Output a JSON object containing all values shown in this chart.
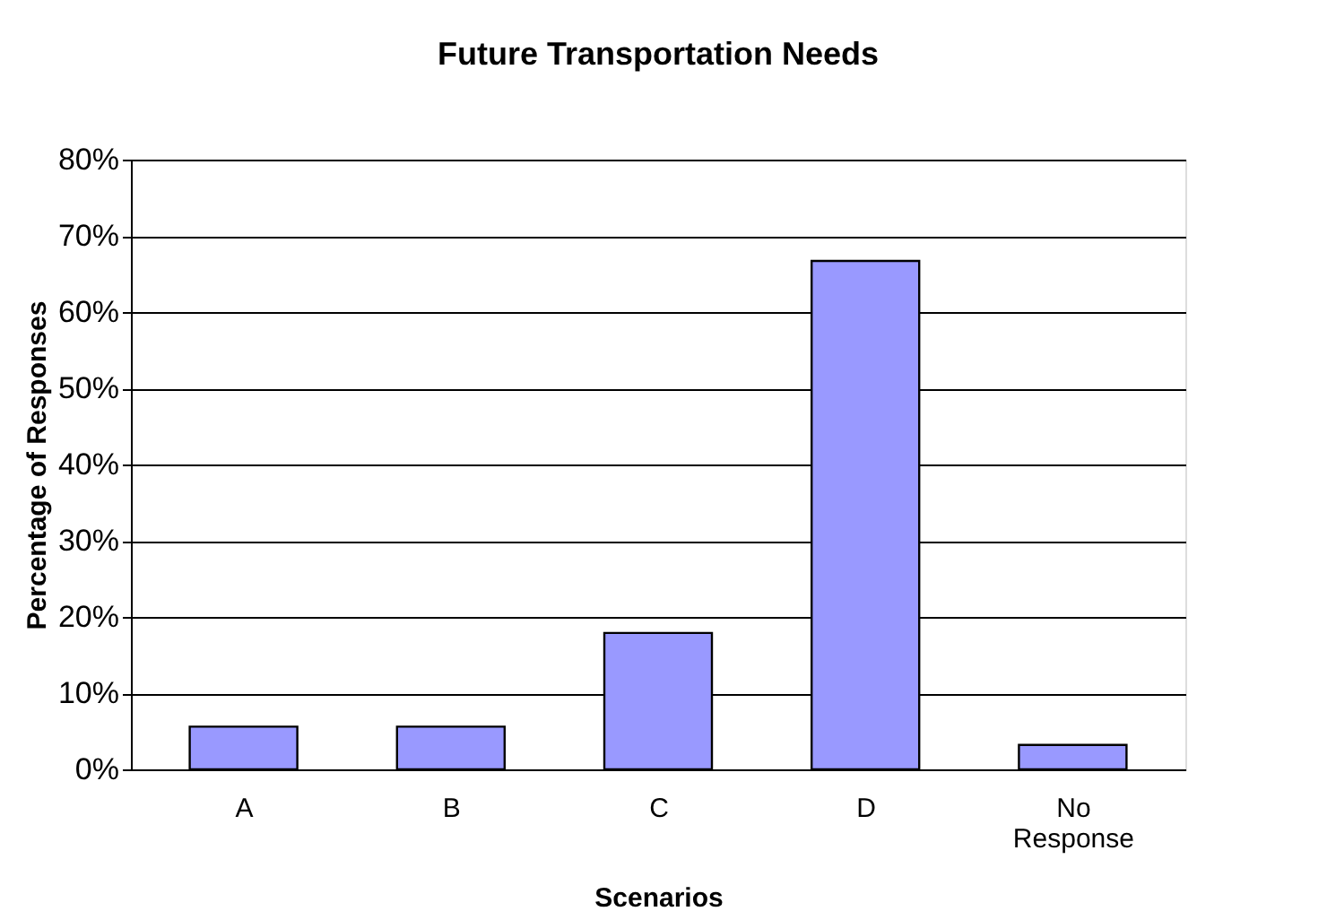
{
  "chart_data": {
    "type": "bar",
    "title": "Future Transportation Needs",
    "xlabel": "Scenarios",
    "ylabel": "Percentage of Responses",
    "categories": [
      "A",
      "B",
      "C",
      "D",
      "No Response"
    ],
    "values": [
      5.6,
      5.6,
      17.9,
      66.7,
      3.2
    ],
    "color": "#9999ff",
    "ylim": [
      0,
      80
    ],
    "yticks": [
      {
        "value": 0,
        "label": "0%"
      },
      {
        "value": 10,
        "label": "10%"
      },
      {
        "value": 20,
        "label": "20%"
      },
      {
        "value": 30,
        "label": "30%"
      },
      {
        "value": 40,
        "label": "40%"
      },
      {
        "value": 50,
        "label": "50%"
      },
      {
        "value": 60,
        "label": "60%"
      },
      {
        "value": 70,
        "label": "70%"
      },
      {
        "value": 80,
        "label": "80%"
      }
    ],
    "grid": "y",
    "legend": false
  }
}
